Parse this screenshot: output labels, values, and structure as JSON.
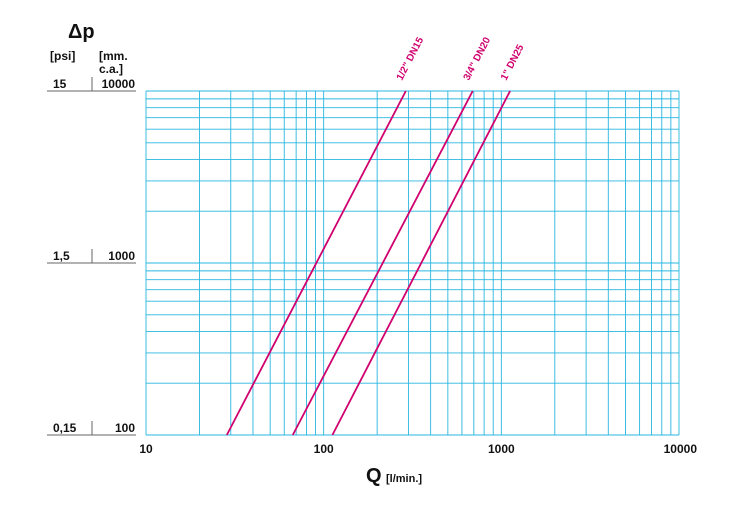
{
  "chart_data": {
    "type": "line",
    "title": "Δp",
    "xlabel": "Q",
    "xlabel_unit": "[l/min.]",
    "x_scale": "log",
    "y_scale": "log",
    "xlim": [
      10,
      10000
    ],
    "ylim": [
      100,
      10000
    ],
    "x_tick_labels": [
      "10",
      "100",
      "1000",
      "10000"
    ],
    "y_unit_psi": "[psi]",
    "y_unit_mm_line1": "[mm.",
    "y_unit_mm_line2": "c.a.]",
    "y_ticks": [
      {
        "mm": "10000",
        "psi": "15"
      },
      {
        "mm": "1000",
        "psi": "1,5"
      },
      {
        "mm": "100",
        "psi": "0,15"
      }
    ],
    "grid": true,
    "colors": {
      "grid": "#29b6e0",
      "series": "#d0006f"
    },
    "series": [
      {
        "name": "1/2\" DN15",
        "x": [
          28.5,
          290
        ],
        "y": [
          100,
          10000
        ]
      },
      {
        "name": "3/4\" DN20",
        "x": [
          67,
          690
        ],
        "y": [
          100,
          10000
        ]
      },
      {
        "name": "1\" DN25",
        "x": [
          112,
          1120
        ],
        "y": [
          100,
          10000
        ]
      }
    ]
  }
}
